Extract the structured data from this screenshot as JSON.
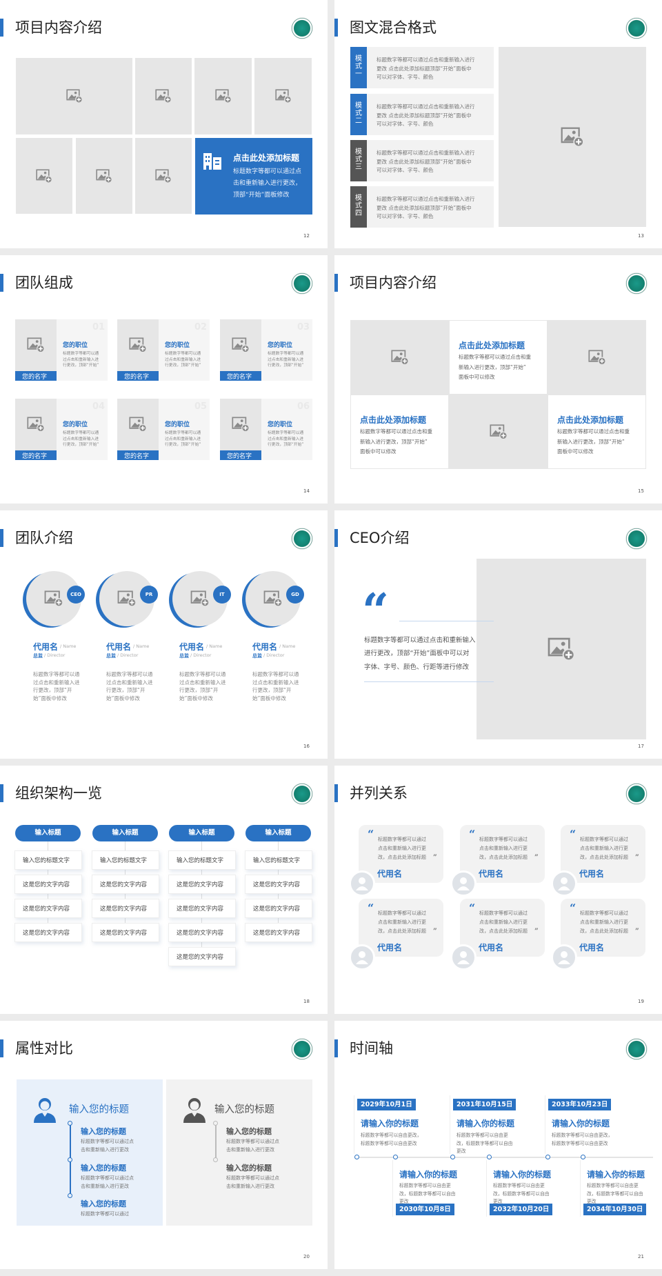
{
  "colors": {
    "accent": "#2a72c3",
    "dark_label": "#555555",
    "placeholder": "#e6e6e6"
  },
  "icons": {
    "image_placeholder": "image-add-icon",
    "logo": "medical-emblem-logo",
    "avatar": "user-avatar-icon",
    "quote": "quote-icon"
  },
  "slides": [
    {
      "title": "项目内容介绍",
      "page": "12",
      "feature": {
        "title": "点击此处添加标题",
        "lines": [
          "标题数字等都可以通过点",
          "击和重新输入进行更改，",
          "顶部“开始”面板修改"
        ]
      }
    },
    {
      "title": "图文混合格式",
      "page": "13",
      "modes": [
        {
          "label": "模式一",
          "lines": [
            "标题数字等都可以通过点击和重新输入进行",
            "更改 点击此处添加标题顶部“开始”面板中",
            "可以对字体、字号、颜色"
          ]
        },
        {
          "label": "模式二",
          "lines": [
            "标题数字等都可以通过点击和重新输入进行",
            "更改 点击此处添加标题顶部“开始”面板中",
            "可以对字体、字号、颜色"
          ]
        },
        {
          "label": "模式三",
          "lines": [
            "标题数字等都可以通过点击和重新输入进行",
            "更改 点击此处添加标题顶部“开始”面板中",
            "可以对字体、字号、颜色"
          ]
        },
        {
          "label": "模式四",
          "lines": [
            "标题数字等都可以通过点击和重新输入进行",
            "更改 点击此处添加标题顶部“开始”面板中",
            "可以对字体、字号、颜色"
          ]
        }
      ]
    },
    {
      "title": "团队组成",
      "page": "14",
      "members": [
        {
          "number": "01",
          "name": "您的名字",
          "position": "您的职位",
          "lines": [
            "标题数字等都可以通",
            "过点击和重新输入进",
            "行更改，顶部“开始”"
          ]
        },
        {
          "number": "02",
          "name": "您的名字",
          "position": "您的职位",
          "lines": [
            "标题数字等都可以通",
            "过点击和重新输入进",
            "行更改，顶部“开始”"
          ]
        },
        {
          "number": "03",
          "name": "您的名字",
          "position": "您的职位",
          "lines": [
            "标题数字等都可以通",
            "过点击和重新输入进",
            "行更改，顶部“开始”"
          ]
        },
        {
          "number": "04",
          "name": "您的名字",
          "position": "您的职位",
          "lines": [
            "标题数字等都可以通",
            "过点击和重新输入进",
            "行更改，顶部“开始”"
          ]
        },
        {
          "number": "05",
          "name": "您的名字",
          "position": "您的职位",
          "lines": [
            "标题数字等都可以通",
            "过点击和重新输入进",
            "行更改，顶部“开始”"
          ]
        },
        {
          "number": "06",
          "name": "您的名字",
          "position": "您的职位",
          "lines": [
            "标题数字等都可以通",
            "过点击和重新输入进",
            "行更改，顶部“开始”"
          ]
        }
      ]
    },
    {
      "title": "项目内容介绍",
      "page": "15",
      "blocks": [
        {
          "title": "点击此处添加标题",
          "lines": [
            "标题数字等都可以通过点击和重",
            "新输入进行更改，顶部“开始”",
            "面板中可以修改"
          ]
        },
        {
          "title": "点击此处添加标题",
          "lines": [
            "标题数字等都可以通过点击和重",
            "新输入进行更改，顶部“开始”",
            "面板中可以修改"
          ]
        },
        {
          "title": "点击此处添加标题",
          "lines": [
            "标题数字等都可以通过点击和重",
            "新输入进行更改，顶部“开始”",
            "面板中可以修改"
          ]
        }
      ]
    },
    {
      "title": "团队介绍",
      "page": "16",
      "members": [
        {
          "badge": "CEO",
          "name": "代用名",
          "name_en": "/ Name",
          "role": "总监",
          "role_en": "/ Director",
          "lines": [
            "标题数字等都可以通",
            "过点击和重新输入进",
            "行更改，顶部“开",
            "始”面板中修改"
          ]
        },
        {
          "badge": "PR",
          "name": "代用名",
          "name_en": "/ Name",
          "role": "总监",
          "role_en": "/ Director",
          "lines": [
            "标题数字等都可以通",
            "过点击和重新输入进",
            "行更改，顶部“开",
            "始”面板中修改"
          ]
        },
        {
          "badge": "IT",
          "name": "代用名",
          "name_en": "/ Name",
          "role": "总监",
          "role_en": "/ Director",
          "lines": [
            "标题数字等都可以通",
            "过点击和重新输入进",
            "行更改，顶部“开",
            "始”面板中修改"
          ]
        },
        {
          "badge": "GD",
          "name": "代用名",
          "name_en": "/ Name",
          "role": "总监",
          "role_en": "/ Director",
          "lines": [
            "标题数字等都可以通",
            "过点击和重新输入进",
            "行更改，顶部“开",
            "始”面板中修改"
          ]
        }
      ]
    },
    {
      "title": "CEO介绍",
      "page": "17",
      "quote_mark": "“",
      "lines": [
        "标题数字等都可以通过点击和重新输入",
        "进行更改，顶部“开始”面板中可以对",
        "字体、字号、颜色、行距等进行修改"
      ]
    },
    {
      "title": "组织架构一览",
      "page": "18",
      "columns": [
        {
          "header": "输入标题",
          "items": [
            "输入您的标题文字",
            "这是您的文字内容",
            "这是您的文字内容",
            "这是您的文字内容"
          ]
        },
        {
          "header": "输入标题",
          "items": [
            "输入您的标题文字",
            "这是您的文字内容",
            "这是您的文字内容",
            "这是您的文字内容"
          ]
        },
        {
          "header": "输入标题",
          "items": [
            "输入您的标题文字",
            "这是您的文字内容",
            "这是您的文字内容",
            "这是您的文字内容",
            "这是您的文字内容"
          ]
        },
        {
          "header": "输入标题",
          "items": [
            "输入您的标题文字",
            "这是您的文字内容",
            "这是您的文字内容",
            "这是您的文字内容"
          ]
        }
      ]
    },
    {
      "title": "并列关系",
      "page": "19",
      "open_quote": "“",
      "close_quote": "”",
      "cards": [
        {
          "name": "代用名",
          "lines": [
            "标题数字等都可以通过",
            "点击和重新输入进行更",
            "改，点击此处添加标题"
          ]
        },
        {
          "name": "代用名",
          "lines": [
            "标题数字等都可以通过",
            "点击和重新输入进行更",
            "改，点击此处添加标题"
          ]
        },
        {
          "name": "代用名",
          "lines": [
            "标题数字等都可以通过",
            "点击和重新输入进行更",
            "改，点击此处添加标题"
          ]
        },
        {
          "name": "代用名",
          "lines": [
            "标题数字等都可以通过",
            "点击和重新输入进行更",
            "改，点击此处添加标题"
          ]
        },
        {
          "name": "代用名",
          "lines": [
            "标题数字等都可以通过",
            "点击和重新输入进行更",
            "改，点击此处添加标题"
          ]
        },
        {
          "name": "代用名",
          "lines": [
            "标题数字等都可以通过",
            "点击和重新输入进行更",
            "改，点击此处添加标题"
          ]
        }
      ]
    },
    {
      "title": "属性对比",
      "page": "20",
      "left": {
        "title": "输入您的标题",
        "items": [
          {
            "title": "输入您的标题",
            "lines": [
              "标题数字等都可以通过点",
              "击和重新输入进行更改"
            ]
          },
          {
            "title": "输入您的标题",
            "lines": [
              "标题数字等都可以通过点",
              "击和重新输入进行更改"
            ]
          },
          {
            "title": "输入您的标题",
            "lines": [
              "标题数字等都可以通过"
            ]
          }
        ]
      },
      "right": {
        "title": "输入您的标题",
        "items": [
          {
            "title": "输入您的标题",
            "lines": [
              "标题数字等都可以通过点",
              "击和重新输入进行更改"
            ]
          },
          {
            "title": "输入您的标题",
            "lines": [
              "标题数字等都可以通过点",
              "击和重新输入进行更改"
            ]
          }
        ]
      }
    },
    {
      "title": "时间轴",
      "page": "21",
      "events": [
        {
          "date": "2029年10月1日",
          "title": "请输入你的标题",
          "lines": [
            "标题数字等都可以自由更改，",
            "标题数字等都可以自由更改"
          ]
        },
        {
          "date": "2030年10月8日",
          "title": "请输入你的标题",
          "lines": [
            "标题数字等都可以自由更",
            "改，标题数字等都可以自由",
            "更改"
          ]
        },
        {
          "date": "2031年10月15日",
          "title": "请输入你的标题",
          "lines": [
            "标题数字等都可以自由更",
            "改，标题数字等都可以自由",
            "更改"
          ]
        },
        {
          "date": "2032年10月20日",
          "title": "请输入你的标题",
          "lines": [
            "标题数字等都可以自由更",
            "改，标题数字等都可以自由",
            "更改"
          ]
        },
        {
          "date": "2033年10月23日",
          "title": "请输入你的标题",
          "lines": [
            "标题数字等都可以自由更改，",
            "标题数字等都可以自由更改"
          ]
        },
        {
          "date": "2034年10月30日",
          "title": "请输入你的标题",
          "lines": [
            "标题数字等都可以自由更",
            "改，标题数字等都可以自由",
            "更改"
          ]
        }
      ]
    }
  ]
}
